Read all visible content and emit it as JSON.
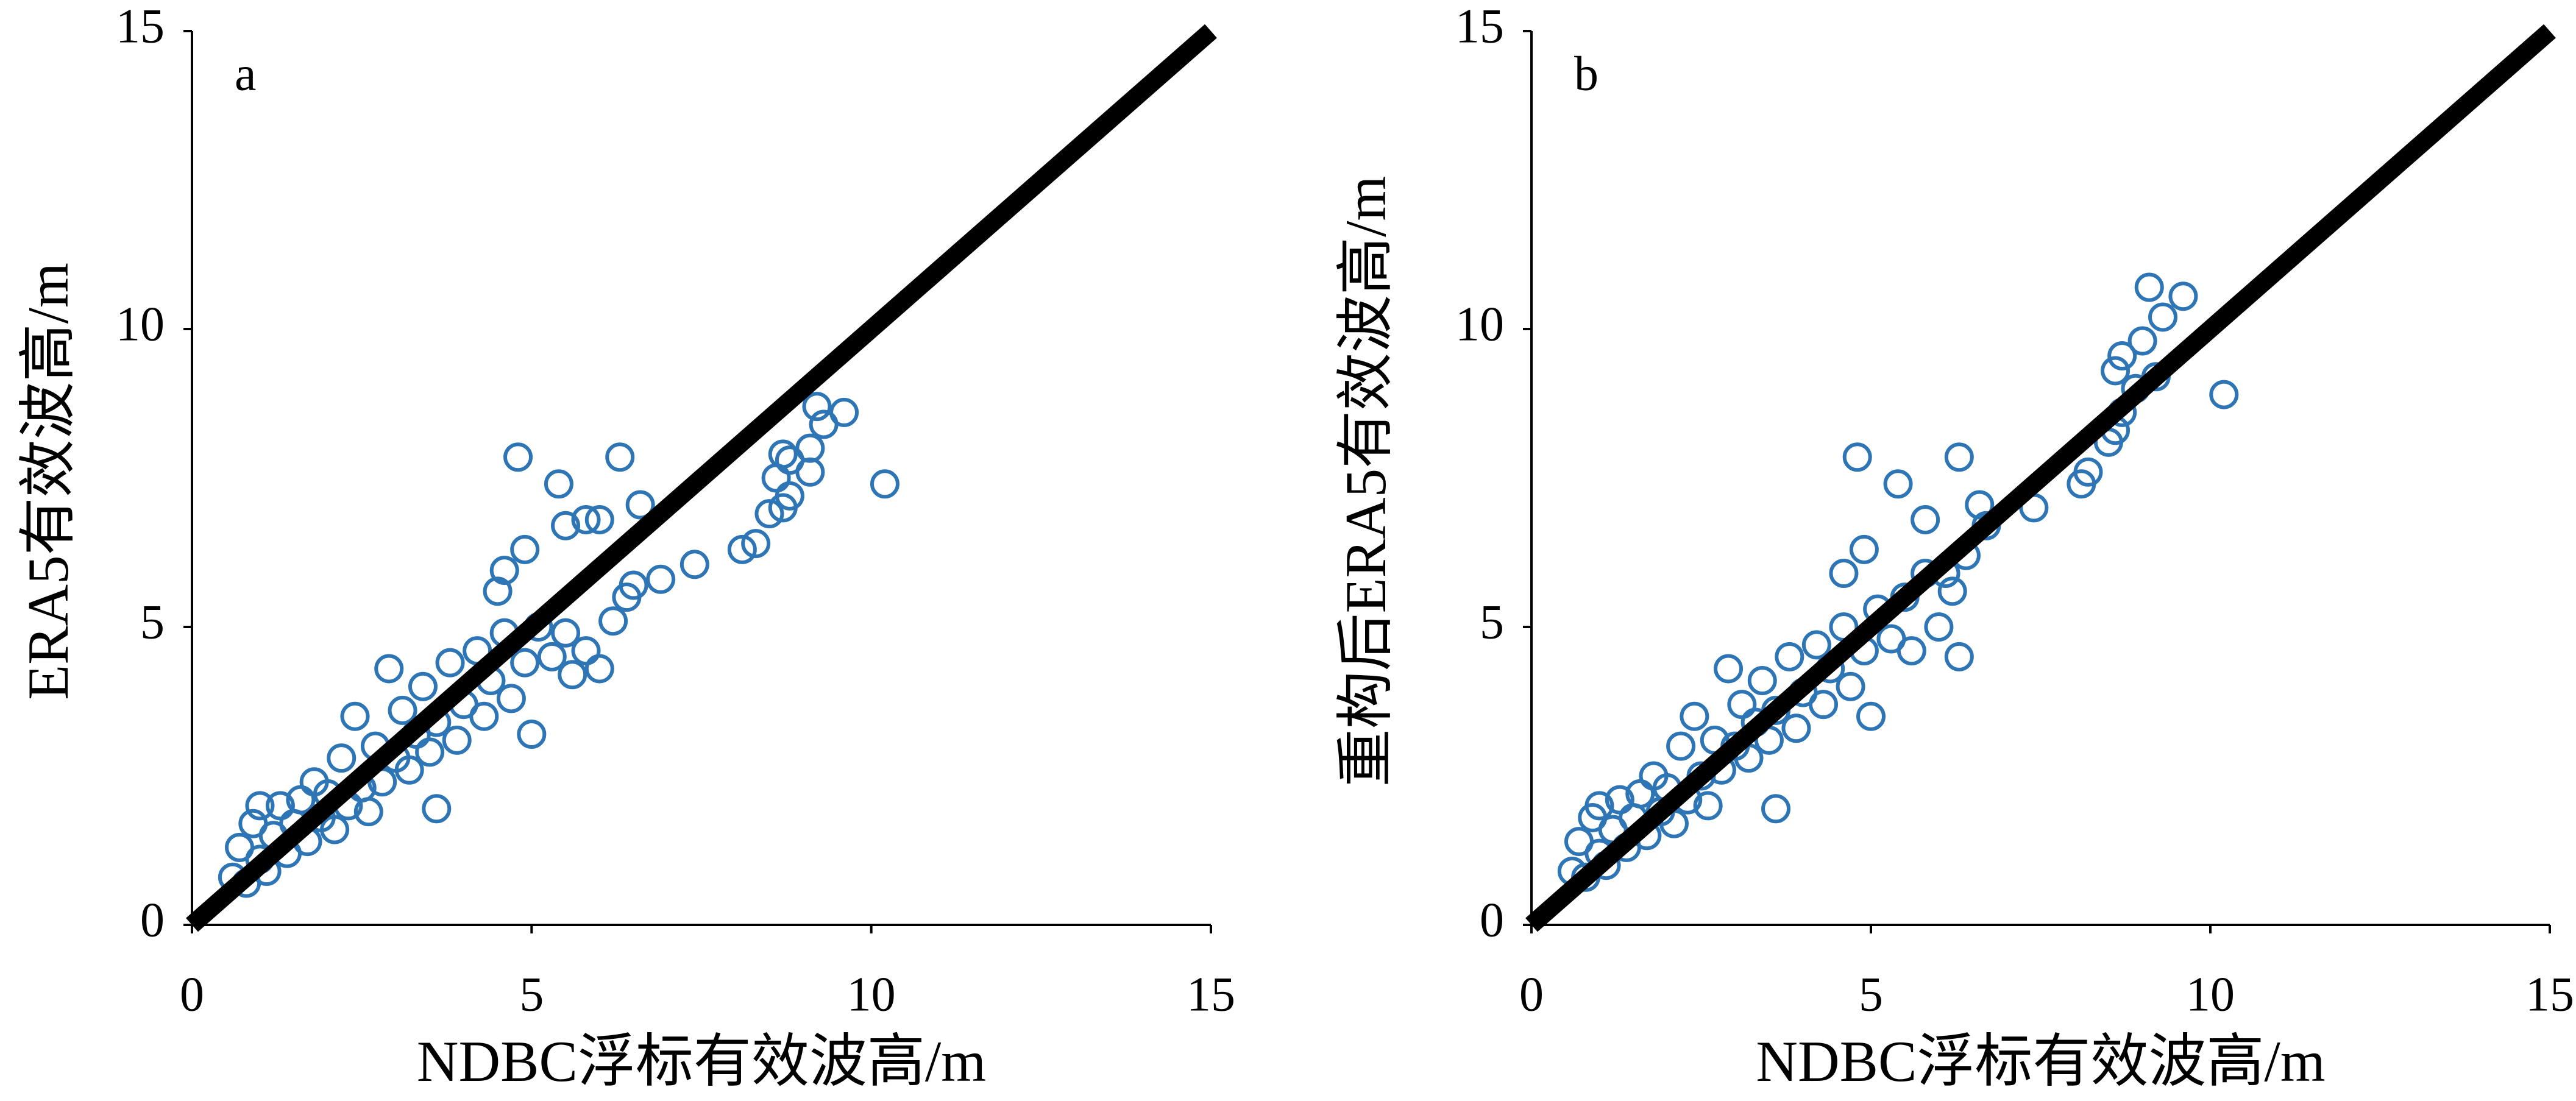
{
  "chart_data": [
    {
      "type": "scatter",
      "label": "a",
      "xlabel": "NDBC浮标有效波高/m",
      "ylabel": "ERA5有效波高/m",
      "xlim": [
        0,
        15
      ],
      "ylim": [
        0,
        15
      ],
      "xticks": [
        0,
        5,
        10,
        15
      ],
      "yticks": [
        0,
        5,
        10,
        15
      ],
      "series": [
        {
          "color": "#2e75b6",
          "x": [
            0.6,
            0.7,
            0.8,
            0.9,
            1.0,
            1.0,
            1.1,
            1.2,
            1.3,
            1.4,
            1.5,
            1.6,
            1.7,
            1.8,
            1.9,
            2.0,
            2.1,
            2.2,
            2.3,
            2.4,
            2.5,
            2.6,
            2.7,
            2.8,
            2.9,
            3.0,
            3.1,
            3.2,
            3.3,
            3.4,
            3.5,
            3.6,
            3.6,
            3.8,
            3.9,
            4.0,
            4.2,
            4.3,
            4.4,
            4.6,
            4.7,
            4.9,
            5.0,
            5.1,
            5.3,
            5.5,
            5.6,
            5.8,
            6.0,
            6.2,
            4.8,
            6.3,
            5.4,
            5.8,
            5.5,
            6.6,
            6.0,
            4.9,
            4.6,
            4.5,
            7.4,
            6.9,
            6.5,
            6.4,
            8.1,
            8.3,
            8.5,
            8.8,
            8.7,
            8.6,
            8.8,
            9.1,
            9.2,
            9.6,
            9.3,
            9.1,
            10.2,
            8.7
          ],
          "y": [
            0.8,
            1.3,
            0.7,
            1.7,
            1.1,
            2.0,
            0.9,
            1.5,
            2.0,
            1.2,
            1.7,
            2.1,
            1.4,
            2.4,
            1.8,
            2.2,
            1.6,
            2.8,
            2.0,
            3.5,
            2.3,
            1.9,
            3.0,
            2.4,
            4.3,
            2.8,
            3.6,
            2.6,
            3.2,
            4.0,
            2.9,
            1.95,
            3.4,
            4.4,
            3.1,
            3.7,
            4.6,
            3.5,
            4.1,
            4.9,
            3.8,
            4.4,
            3.2,
            5.0,
            4.5,
            4.9,
            4.2,
            4.6,
            4.3,
            5.1,
            7.85,
            7.85,
            7.4,
            6.8,
            6.7,
            7.05,
            6.8,
            6.3,
            5.95,
            5.6,
            6.05,
            5.8,
            5.7,
            5.5,
            6.3,
            6.4,
            6.9,
            7.2,
            7.0,
            7.5,
            7.8,
            8.0,
            8.7,
            8.6,
            8.4,
            7.6,
            7.4,
            7.9
          ]
        }
      ],
      "reference_line": {
        "x": [
          0,
          15
        ],
        "y": [
          0,
          15
        ],
        "color": "#000000"
      }
    },
    {
      "type": "scatter",
      "label": "b",
      "xlabel": "NDBC浮标有效波高/m",
      "ylabel": "重构后ERA5有效波高/m",
      "xlim": [
        0,
        15
      ],
      "ylim": [
        0,
        15
      ],
      "xticks": [
        0,
        5,
        10,
        15
      ],
      "yticks": [
        0,
        5,
        10,
        15
      ],
      "series": [
        {
          "color": "#2e75b6",
          "x": [
            0.6,
            0.7,
            0.8,
            0.9,
            1.0,
            1.0,
            1.1,
            1.2,
            1.3,
            1.4,
            1.5,
            1.6,
            1.7,
            1.8,
            1.9,
            2.0,
            2.1,
            2.2,
            2.3,
            2.4,
            2.5,
            2.6,
            2.7,
            2.8,
            2.9,
            3.0,
            3.1,
            3.2,
            3.3,
            3.4,
            3.5,
            3.6,
            3.6,
            3.8,
            3.9,
            4.0,
            4.2,
            4.3,
            4.4,
            4.6,
            4.7,
            4.9,
            5.0,
            5.1,
            5.3,
            5.5,
            5.6,
            5.8,
            6.0,
            6.2,
            4.8,
            6.3,
            5.4,
            5.8,
            6.6,
            4.9,
            4.6,
            7.4,
            6.7,
            8.1,
            8.2,
            8.5,
            8.6,
            8.7,
            8.6,
            8.7,
            9.0,
            9.2,
            9.1,
            9.3,
            9.6,
            8.9,
            10.2,
            6.3,
            6.4,
            6.1
          ],
          "y": [
            0.9,
            1.4,
            0.8,
            1.8,
            1.2,
            2.0,
            1.0,
            1.6,
            2.1,
            1.3,
            1.8,
            2.2,
            1.5,
            2.5,
            1.9,
            2.3,
            1.7,
            3.0,
            2.1,
            3.5,
            2.5,
            2.0,
            3.1,
            2.6,
            4.3,
            3.0,
            3.7,
            2.8,
            3.4,
            4.1,
            3.1,
            1.95,
            3.6,
            4.5,
            3.3,
            3.9,
            4.7,
            3.7,
            4.3,
            5.0,
            4.0,
            4.6,
            3.5,
            5.3,
            4.8,
            5.5,
            4.6,
            5.9,
            5.0,
            5.6,
            7.85,
            7.85,
            7.4,
            6.8,
            7.05,
            6.3,
            5.9,
            7.0,
            6.7,
            7.4,
            7.6,
            8.1,
            8.3,
            8.6,
            9.3,
            9.55,
            9.8,
            9.2,
            10.7,
            10.2,
            10.55,
            9.0,
            8.9,
            4.5,
            6.2,
            5.9
          ]
        }
      ],
      "reference_line": {
        "x": [
          0,
          15
        ],
        "y": [
          0,
          15
        ],
        "color": "#000000"
      }
    }
  ]
}
